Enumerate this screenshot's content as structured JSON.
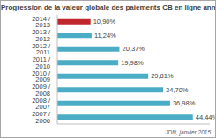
{
  "chart_data": {
    "type": "bar",
    "title": "Progression de la valeur globale des paiements CB en ligne annuels",
    "annotation": "JDN, janvier 2015",
    "orientation": "horizontal",
    "categories": [
      "2014 / 2013",
      "2013 / 2012",
      "2012 / 2011",
      "2011 / 2010",
      "2010 / 2009",
      "2009 / 2008",
      "2008 / 2007",
      "2007 / 2006"
    ],
    "values": [
      10.9,
      11.24,
      20.37,
      19.98,
      29.81,
      34.7,
      36.98,
      44.44
    ],
    "value_labels": [
      "10,90%",
      "11,24%",
      "20,37%",
      "19,98%",
      "29,81%",
      "34,70%",
      "36,98%",
      "44,44%"
    ],
    "colors": [
      "#c0272d",
      "#4bacc6",
      "#4bacc6",
      "#4bacc6",
      "#4bacc6",
      "#4bacc6",
      "#4bacc6",
      "#4bacc6"
    ],
    "xlim": [
      0,
      50
    ],
    "data_labels": true,
    "tick_labels": "y",
    "grid": false
  }
}
